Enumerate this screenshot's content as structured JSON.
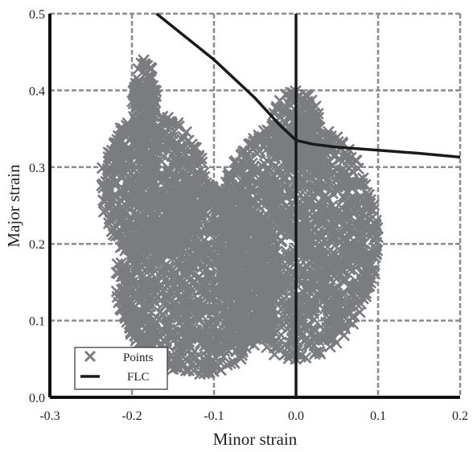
{
  "chart_data": {
    "type": "scatter",
    "xlabel": "Minor strain",
    "ylabel": "Major strain",
    "xlim": [
      -0.3,
      0.2
    ],
    "ylim": [
      0.0,
      0.5
    ],
    "x_ticks": [
      "-0.3",
      "-0.2",
      "-0.1",
      "0.0",
      "0.1",
      "0.2"
    ],
    "y_ticks": [
      "0.0",
      "0.1",
      "0.2",
      "0.3",
      "0.4",
      "0.5"
    ],
    "grid": true,
    "legend": {
      "placement": "bottom-left",
      "entries": [
        {
          "label": "Points",
          "marker": "x"
        },
        {
          "label": "FLC",
          "marker": "line"
        }
      ]
    },
    "series": [
      {
        "name": "Points",
        "marker": "x",
        "color": "#7a7c80",
        "cloud_regions": [
          {
            "x_range": [
              -0.24,
              -0.11
            ],
            "y_range": [
              0.18,
              0.37
            ]
          },
          {
            "x_range": [
              -0.2,
              -0.17
            ],
            "y_range": [
              0.33,
              0.44
            ]
          },
          {
            "x_range": [
              -0.22,
              -0.02
            ],
            "y_range": [
              0.03,
              0.28
            ]
          },
          {
            "x_range": [
              -0.1,
              0.1
            ],
            "y_range": [
              0.05,
              0.36
            ]
          },
          {
            "x_range": [
              -0.03,
              0.03
            ],
            "y_range": [
              0.3,
              0.4
            ]
          }
        ]
      },
      {
        "name": "FLC",
        "marker": "line",
        "color": "#1a1a1a",
        "x": [
          -0.17,
          -0.1,
          -0.05,
          -0.02,
          0.0,
          0.02,
          0.05,
          0.1,
          0.15,
          0.2
        ],
        "y": [
          0.5,
          0.44,
          0.39,
          0.355,
          0.335,
          0.33,
          0.326,
          0.322,
          0.318,
          0.313
        ]
      },
      {
        "name": "",
        "marker": "line",
        "color": "#1a1a1a",
        "x": [
          0.0,
          0.0
        ],
        "y": [
          0.0,
          0.5
        ]
      }
    ]
  }
}
